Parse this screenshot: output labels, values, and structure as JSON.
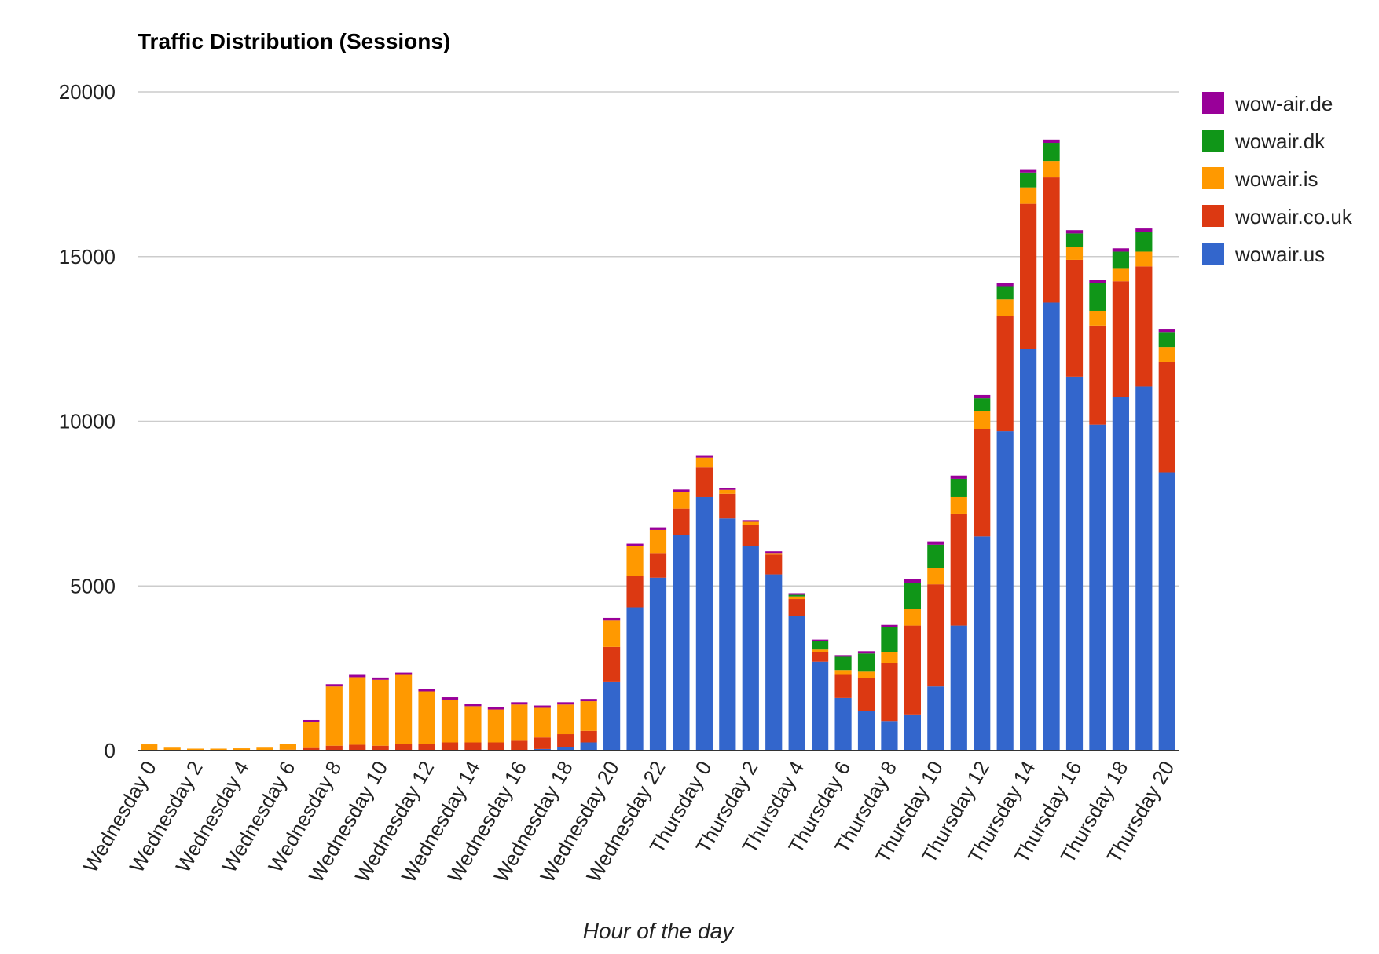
{
  "chart_data": {
    "type": "bar",
    "stacked": true,
    "title": "Traffic Distribution (Sessions)",
    "xlabel": "Hour of the day",
    "ylabel": "",
    "ylim": [
      0,
      20000
    ],
    "yticks": [
      0,
      5000,
      10000,
      15000,
      20000
    ],
    "grid": true,
    "legend_position": "right",
    "x_tick_labels": [
      "Wednesday 0",
      "Wednesday 2",
      "Wednesday 4",
      "Wednesday 6",
      "Wednesday 8",
      "Wednesday 10",
      "Wednesday 12",
      "Wednesday 14",
      "Wednesday 16",
      "Wednesday 18",
      "Wednesday 20",
      "Wednesday 22",
      "Thursday 0",
      "Thursday 2",
      "Thursday 4",
      "Thursday 6",
      "Thursday 8",
      "Thursday 10",
      "Thursday 12",
      "Thursday 14",
      "Thursday 16",
      "Thursday 18",
      "Thursday 20"
    ],
    "categories": [
      "Wednesday 0",
      "Wednesday 1",
      "Wednesday 2",
      "Wednesday 3",
      "Wednesday 4",
      "Wednesday 5",
      "Wednesday 6",
      "Wednesday 7",
      "Wednesday 8",
      "Wednesday 9",
      "Wednesday 10",
      "Wednesday 11",
      "Wednesday 12",
      "Wednesday 13",
      "Wednesday 14",
      "Wednesday 15",
      "Wednesday 16",
      "Wednesday 17",
      "Wednesday 18",
      "Wednesday 19",
      "Wednesday 20",
      "Wednesday 21",
      "Wednesday 22",
      "Wednesday 23",
      "Thursday 0",
      "Thursday 1",
      "Thursday 2",
      "Thursday 3",
      "Thursday 4",
      "Thursday 5",
      "Thursday 6",
      "Thursday 7",
      "Thursday 8",
      "Thursday 9",
      "Thursday 10",
      "Thursday 11",
      "Thursday 12",
      "Thursday 13",
      "Thursday 14",
      "Thursday 15",
      "Thursday 16",
      "Thursday 17",
      "Thursday 18",
      "Thursday 19",
      "Thursday 20"
    ],
    "series": [
      {
        "name": "wowair.us",
        "color": "#3366cc",
        "values": [
          0,
          0,
          0,
          0,
          0,
          0,
          0,
          0,
          0,
          0,
          0,
          0,
          0,
          0,
          0,
          0,
          0,
          50,
          100,
          250,
          2100,
          4350,
          5250,
          6550,
          7700,
          7050,
          6200,
          5350,
          4100,
          2700,
          1600,
          1200,
          900,
          1100,
          1950,
          3800,
          6500,
          9700,
          12200,
          13600,
          11350,
          9900,
          10750,
          11050,
          8450
        ]
      },
      {
        "name": "wowair.co.uk",
        "color": "#dc3912",
        "values": [
          20,
          10,
          10,
          10,
          10,
          10,
          30,
          80,
          150,
          180,
          150,
          200,
          200,
          250,
          250,
          250,
          300,
          350,
          400,
          350,
          1050,
          950,
          750,
          800,
          900,
          750,
          650,
          600,
          500,
          300,
          700,
          1000,
          1750,
          2700,
          3100,
          3400,
          3250,
          3500,
          4400,
          3800,
          3550,
          3000,
          3500,
          3650,
          3350
        ]
      },
      {
        "name": "wowair.is",
        "color": "#ff9900",
        "values": [
          170,
          80,
          50,
          50,
          60,
          80,
          170,
          800,
          1800,
          2050,
          2000,
          2100,
          1600,
          1300,
          1100,
          1000,
          1100,
          900,
          900,
          900,
          800,
          900,
          700,
          500,
          300,
          120,
          100,
          50,
          80,
          70,
          150,
          200,
          350,
          500,
          500,
          500,
          550,
          500,
          500,
          500,
          400,
          450,
          400,
          450,
          450
        ]
      },
      {
        "name": "wowair.dk",
        "color": "#109618",
        "values": [
          0,
          0,
          0,
          0,
          0,
          0,
          0,
          0,
          0,
          0,
          0,
          0,
          0,
          0,
          0,
          0,
          0,
          0,
          0,
          0,
          0,
          0,
          0,
          0,
          0,
          0,
          0,
          0,
          50,
          250,
          400,
          550,
          750,
          800,
          700,
          550,
          400,
          400,
          450,
          550,
          400,
          850,
          500,
          600,
          450
        ]
      },
      {
        "name": "wow-air.de",
        "color": "#990099",
        "values": [
          0,
          0,
          0,
          0,
          0,
          0,
          0,
          50,
          70,
          70,
          70,
          70,
          70,
          70,
          70,
          70,
          70,
          70,
          70,
          70,
          80,
          80,
          80,
          80,
          50,
          50,
          50,
          50,
          50,
          50,
          50,
          70,
          70,
          120,
          100,
          100,
          100,
          100,
          100,
          100,
          100,
          100,
          100,
          100,
          100
        ]
      }
    ]
  }
}
